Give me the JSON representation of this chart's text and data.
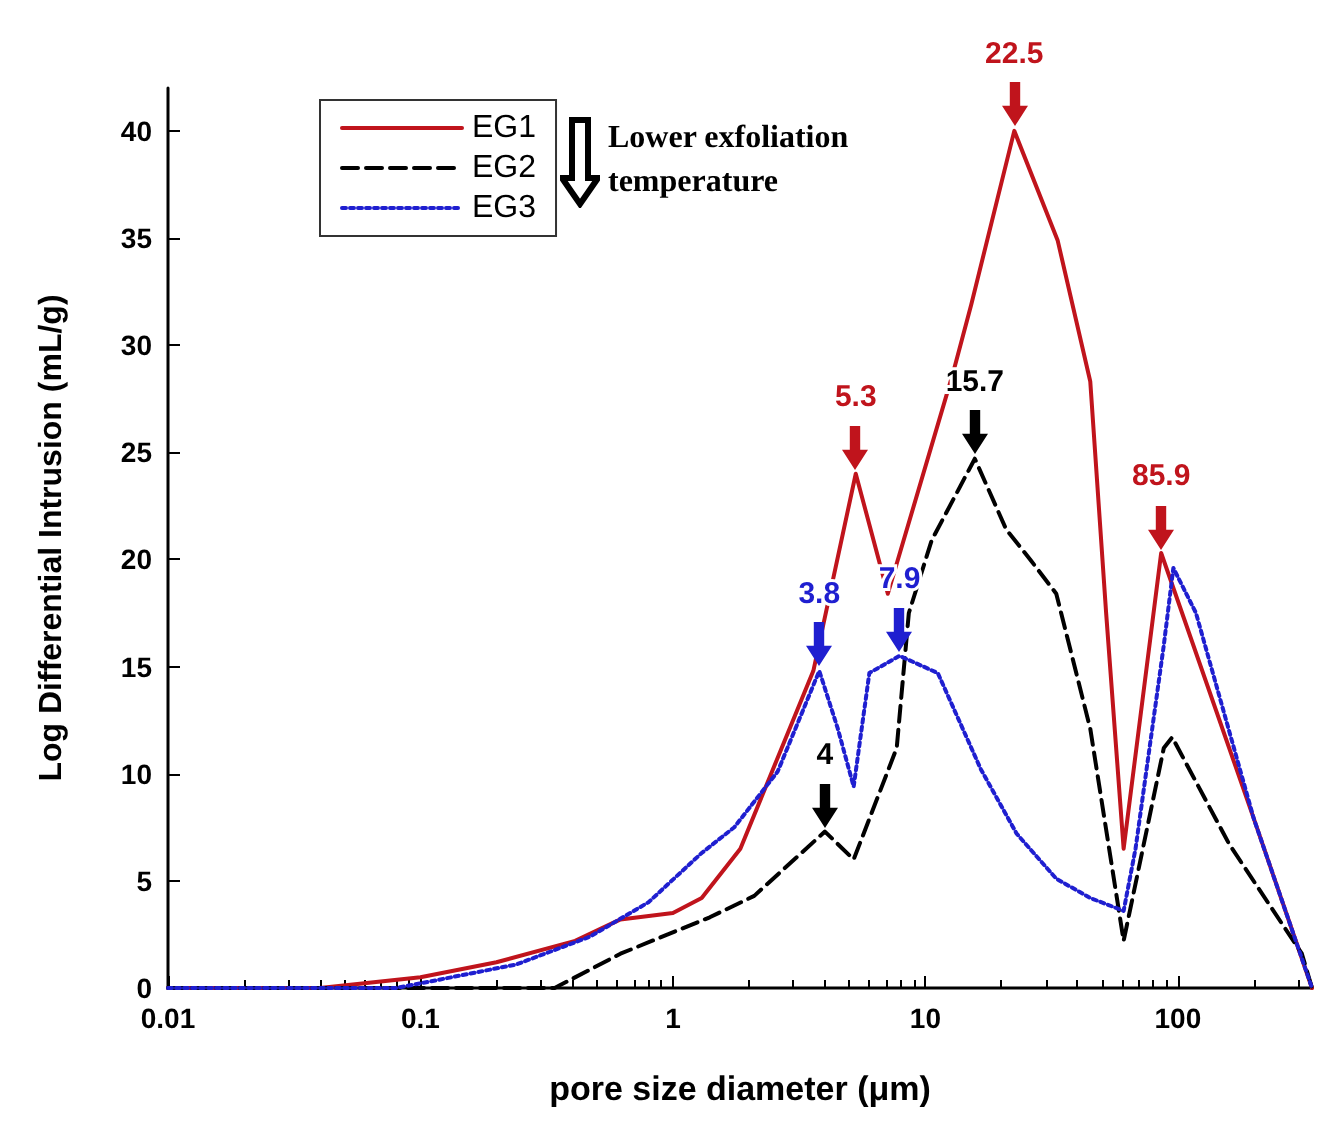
{
  "chart_data": {
    "type": "line",
    "xlabel": "pore size diameter (μm)",
    "ylabel": "Log Differential Intrusion (mL/g)",
    "log": "x",
    "xlim": [
      0.01,
      340
    ],
    "xticks": [
      0.01,
      0.1,
      1,
      10,
      100
    ],
    "ylim": [
      0,
      42
    ],
    "yticks": [
      0,
      5,
      10,
      15,
      20,
      25,
      30,
      35,
      40
    ],
    "grid": false,
    "legend": "top left",
    "marker": "none",
    "series": [
      {
        "name": "EG1",
        "color": "#c0141c",
        "line_style": "solid",
        "x": [
          0.01,
          0.04,
          0.1,
          0.2,
          0.41,
          0.62,
          1.0,
          1.3,
          1.85,
          3.6,
          5.3,
          7.1,
          12.8,
          15.2,
          22.5,
          33.4,
          45,
          52,
          61,
          85.9,
          200,
          340
        ],
        "values": [
          0,
          0,
          0.5,
          1.2,
          2.2,
          3.2,
          3.5,
          4.2,
          6.5,
          14.8,
          24,
          18.4,
          28.6,
          31.9,
          40,
          34.9,
          28.3,
          17.5,
          6.5,
          20.3,
          7.9,
          0
        ]
      },
      {
        "name": "EG2",
        "color": "#000000",
        "line_style": "dashed",
        "x": [
          0.01,
          0.34,
          0.62,
          1.4,
          2.1,
          4,
          5.2,
          7.7,
          8.6,
          10.6,
          15.7,
          20.9,
          26,
          33,
          45,
          61,
          88,
          95,
          160,
          310,
          340
        ],
        "values": [
          0,
          0,
          1.6,
          3.3,
          4.3,
          7.3,
          6.0,
          11.2,
          17.5,
          20.9,
          24.7,
          21.4,
          20,
          18.4,
          12.1,
          2.2,
          11.2,
          11.7,
          6.7,
          1.6,
          0
        ]
      },
      {
        "name": "EG3",
        "color": "#1f1fd0",
        "line_style": "dotted",
        "x": [
          0.01,
          0.08,
          0.12,
          0.24,
          0.47,
          0.8,
          1.3,
          1.75,
          2.6,
          3.8,
          4.5,
          5.2,
          6.0,
          7.9,
          11.2,
          16.6,
          23,
          33,
          45,
          61,
          68,
          88,
          96,
          118,
          200,
          340
        ],
        "values": [
          0,
          0,
          0.4,
          1.1,
          2.4,
          4.0,
          6.3,
          7.5,
          10.1,
          14.8,
          12.1,
          9.4,
          14.7,
          15.5,
          14.7,
          10.2,
          7.2,
          5.1,
          4.2,
          3.6,
          6.5,
          16,
          19.6,
          17.5,
          7.9,
          0
        ]
      }
    ],
    "annotations": [
      {
        "text": "22.5",
        "x": 22.5,
        "y": 40
      },
      {
        "text": "5.3",
        "x": 5.3,
        "y": 24
      },
      {
        "text": "15.7",
        "x": 15.7,
        "y": 24.7
      },
      {
        "text": "85.9",
        "x": 85.9,
        "y": 20.3
      },
      {
        "text": "3.8",
        "x": 3.8,
        "y": 14.8
      },
      {
        "text": "7.9",
        "x": 7.9,
        "y": 15.5
      },
      {
        "text": "4",
        "x": 4,
        "y": 7.3
      },
      "Lower exfoliation temperature"
    ]
  }
}
